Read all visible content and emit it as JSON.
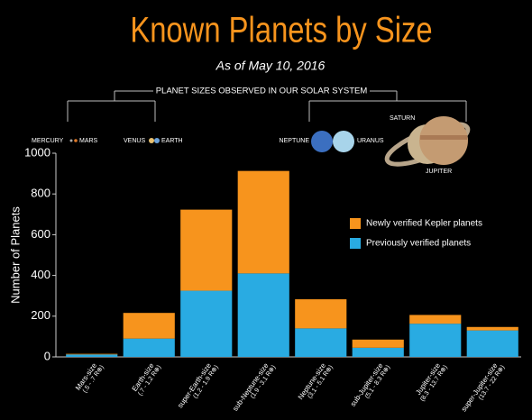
{
  "chart_data": {
    "type": "stacked_bar",
    "title": "Known Planets by Size",
    "subtitle": "As of May 10, 2016",
    "y_label": "Number of Planets",
    "categories": [
      "Mars-size",
      "Earth-size",
      "super-Earth-size",
      "sub-Neptune-size",
      "Neptune-size",
      "sub-Jupiter-size",
      "Jupiter-size",
      "super-Jupiter-size"
    ],
    "category_ranges": [
      "(.5 - .7 R⊕)",
      "(.7 - 1.2 R⊕)",
      "(1.2 - 1.9 R⊕)",
      "(1.9 - 3.1 R⊕)",
      "(3.1 - 5.1 R⊕)",
      "(5.1 - 8.3 R⊕)",
      "(8.3 - 13.7 R⊕)",
      "(13.7 - 22 R⊕)"
    ],
    "series": [
      {
        "name": "Newly verified Kepler planets",
        "color": "#f7941d",
        "values": [
          3,
          126,
          398,
          503,
          143,
          40,
          43,
          17
        ]
      },
      {
        "name": "Previously verified planets",
        "color": "#29abe2",
        "values": [
          12,
          90,
          325,
          410,
          140,
          45,
          163,
          130
        ]
      }
    ],
    "ylim": [
      0,
      1000
    ],
    "yticks": [
      0,
      200,
      400,
      600,
      800,
      1000
    ],
    "grid": false,
    "annotations": {
      "heading": "PLANET SIZES OBSERVED IN OUR SOLAR SYSTEM",
      "planets": [
        "MERCURY",
        "MARS",
        "VENUS",
        "EARTH",
        "NEPTUNE",
        "URANUS",
        "SATURN",
        "JUPITER"
      ]
    }
  }
}
